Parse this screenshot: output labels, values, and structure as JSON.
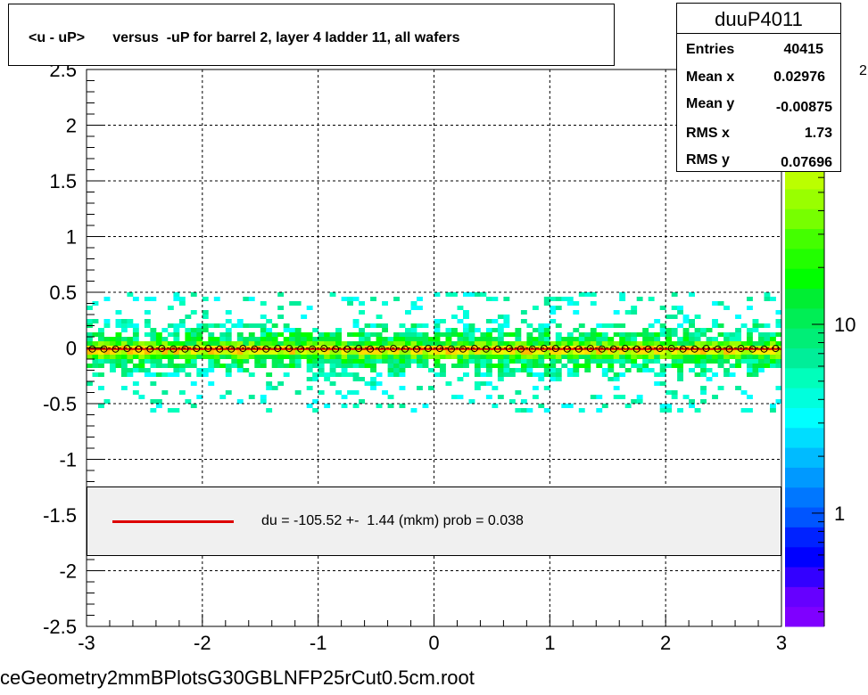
{
  "title": "<u - uP>       versus  -uP for barrel 2, layer 4 ladder 11, all wafers",
  "stats": {
    "name": "duuP4011",
    "rows": [
      {
        "key": "Entries",
        "value": "40415"
      },
      {
        "key": "Mean x",
        "value": "0.02976"
      },
      {
        "key": "Mean y",
        "value": "-0.00875"
      },
      {
        "key": "RMS x",
        "value": "1.73"
      },
      {
        "key": "RMS y",
        "value": "0.07696"
      }
    ]
  },
  "fit": {
    "label": "du = -105.52 +-  1.44 (mkm) prob = 0.038",
    "line_color": "#dd0000"
  },
  "footer": "ceGeometry2mmBPlotsG30GBLNFP25rCut0.5cm.root",
  "chart_data": {
    "type": "heatmap",
    "xlim": [
      -3,
      3
    ],
    "ylim": [
      -2.5,
      2.5
    ],
    "x_ticks": [
      "-3",
      "-2",
      "-1",
      "0",
      "1",
      "2",
      "3"
    ],
    "y_ticks": [
      "-2.5",
      "-2",
      "-1.5",
      "-1",
      "-0.5",
      "0",
      "0.5",
      "1",
      "1.5",
      "2",
      "2.5"
    ],
    "grid": true,
    "colorbar": {
      "scale": "log",
      "labels": [
        {
          "text": "1",
          "value": 1
        },
        {
          "text": "10",
          "value": 10
        }
      ],
      "exponent_label": "2",
      "colors": [
        "#7f00ff",
        "#6600ff",
        "#3300ff",
        "#0000ff",
        "#0022ff",
        "#0055ff",
        "#0077ff",
        "#0099ff",
        "#00bbff",
        "#00ddff",
        "#00ffff",
        "#00ffdd",
        "#00ffbb",
        "#00ee99",
        "#00ee77",
        "#00ee55",
        "#00ee33",
        "#00ff00",
        "#22ff00",
        "#44ff00",
        "#77ff00",
        "#99ff00",
        "#bbff00",
        "#ddff00",
        "#ffee00",
        "#ffdd00",
        "#ffbb00",
        "#ff9900"
      ]
    },
    "profile": {
      "name": "mean",
      "x_range": [
        -2.95,
        2.95
      ],
      "y_values": [
        -0.01,
        -0.01,
        -0.01,
        -0.005,
        -0.01,
        -0.01,
        -0.005,
        -0.01,
        -0.01,
        -0.005,
        -0.005,
        -0.01,
        -0.01,
        -0.005,
        -0.01,
        -0.01,
        -0.005,
        -0.005,
        -0.01,
        -0.01,
        -0.005,
        -0.01,
        -0.01,
        -0.005,
        -0.01,
        -0.01,
        -0.005,
        -0.01,
        -0.01,
        -0.005,
        -0.005,
        -0.01,
        -0.01,
        -0.005,
        -0.01,
        -0.01,
        -0.005,
        -0.01,
        -0.01,
        -0.005,
        -0.005,
        -0.01,
        -0.01,
        -0.005,
        -0.01,
        -0.01,
        -0.005,
        -0.01,
        -0.01,
        -0.005,
        -0.005,
        -0.01,
        -0.01,
        -0.005,
        -0.01,
        -0.01,
        -0.005,
        -0.01,
        -0.01,
        -0.005
      ]
    },
    "fit_line": {
      "y": -0.01,
      "color": "#dd0000"
    },
    "band": {
      "core_halfwidth": 0.05,
      "outer_halfwidth": 0.5
    }
  }
}
